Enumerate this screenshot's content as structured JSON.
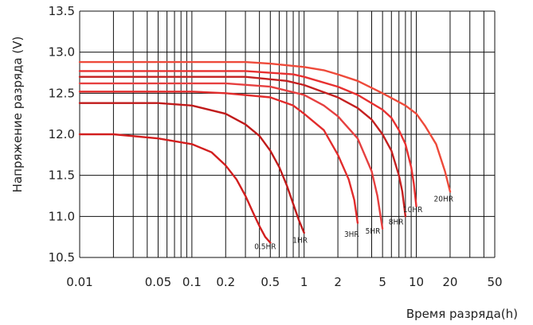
{
  "chart_data": {
    "type": "line",
    "title": "",
    "xlabel": "Время разряда(h)",
    "ylabel": "Напряжение разряда (V)",
    "x_scale": "log",
    "xlim": [
      0.01,
      50
    ],
    "ylim": [
      10.5,
      13.5
    ],
    "grid": true,
    "x_tick_labels": [
      "0.01",
      "0.05",
      "0.1",
      "0.2",
      "0.5",
      "1",
      "2",
      "5",
      "10",
      "20",
      "50"
    ],
    "y_tick_labels": [
      "10.5",
      "11.0",
      "11.5",
      "12.0",
      "12.5",
      "13.0",
      "13.5"
    ],
    "series": [
      {
        "name": "0.5HR",
        "color": "#d21e1e",
        "x": [
          0.01,
          0.02,
          0.05,
          0.1,
          0.15,
          0.2,
          0.25,
          0.3,
          0.35,
          0.4,
          0.45,
          0.5
        ],
        "y": [
          12.0,
          12.0,
          11.95,
          11.88,
          11.78,
          11.62,
          11.45,
          11.25,
          11.05,
          10.88,
          10.75,
          10.68
        ]
      },
      {
        "name": "1HR",
        "color": "#c01a1a",
        "x": [
          0.01,
          0.05,
          0.1,
          0.2,
          0.3,
          0.4,
          0.5,
          0.6,
          0.7,
          0.8,
          0.9,
          1.0
        ],
        "y": [
          12.38,
          12.38,
          12.35,
          12.25,
          12.12,
          11.98,
          11.8,
          11.6,
          11.38,
          11.15,
          10.95,
          10.8
        ]
      },
      {
        "name": "3HR",
        "color": "#e22c2c",
        "x": [
          0.01,
          0.1,
          0.2,
          0.5,
          0.8,
          1.0,
          1.5,
          2.0,
          2.5,
          2.8,
          3.0
        ],
        "y": [
          12.52,
          12.52,
          12.5,
          12.45,
          12.35,
          12.25,
          12.05,
          11.75,
          11.45,
          11.2,
          10.92
        ]
      },
      {
        "name": "5HR",
        "color": "#e64040",
        "x": [
          0.01,
          0.2,
          0.5,
          1.0,
          1.5,
          2.0,
          3.0,
          4.0,
          4.5,
          5.0
        ],
        "y": [
          12.62,
          12.62,
          12.58,
          12.48,
          12.35,
          12.22,
          11.95,
          11.55,
          11.25,
          10.85
        ]
      },
      {
        "name": "8HR",
        "color": "#c42020",
        "x": [
          0.01,
          0.3,
          0.7,
          1.0,
          2.0,
          3.0,
          4.0,
          5.0,
          6.0,
          7.0,
          7.5,
          8.0
        ],
        "y": [
          12.7,
          12.7,
          12.65,
          12.6,
          12.45,
          12.32,
          12.18,
          12.0,
          11.8,
          11.5,
          11.3,
          11.0
        ]
      },
      {
        "name": "10HR",
        "color": "#e83030",
        "x": [
          0.01,
          0.3,
          0.8,
          1.0,
          2.0,
          3.0,
          5.0,
          6.0,
          7.0,
          8.0,
          9.0,
          9.5,
          10.0
        ],
        "y": [
          12.77,
          12.77,
          12.73,
          12.7,
          12.58,
          12.48,
          12.3,
          12.2,
          12.05,
          11.88,
          11.6,
          11.4,
          11.12
        ]
      },
      {
        "name": "20HR",
        "color": "#ee4a3a",
        "x": [
          0.01,
          0.3,
          0.5,
          1.0,
          1.5,
          2.0,
          3.0,
          5.0,
          8.0,
          10.0,
          12.0,
          15.0,
          18.0,
          20.0
        ],
        "y": [
          12.88,
          12.88,
          12.86,
          12.82,
          12.78,
          12.73,
          12.65,
          12.5,
          12.35,
          12.25,
          12.1,
          11.88,
          11.55,
          11.3
        ]
      }
    ],
    "curve_labels": [
      {
        "text": "0.5HR",
        "x": 0.45,
        "y": 10.6
      },
      {
        "text": "1HR",
        "x": 0.92,
        "y": 10.68
      },
      {
        "text": "3HR",
        "x": 2.65,
        "y": 10.75
      },
      {
        "text": "5HR",
        "x": 4.1,
        "y": 10.79
      },
      {
        "text": "8HR",
        "x": 6.6,
        "y": 10.9
      },
      {
        "text": "10HR",
        "x": 9.3,
        "y": 11.05
      },
      {
        "text": "20HR",
        "x": 17.5,
        "y": 11.18
      }
    ]
  }
}
